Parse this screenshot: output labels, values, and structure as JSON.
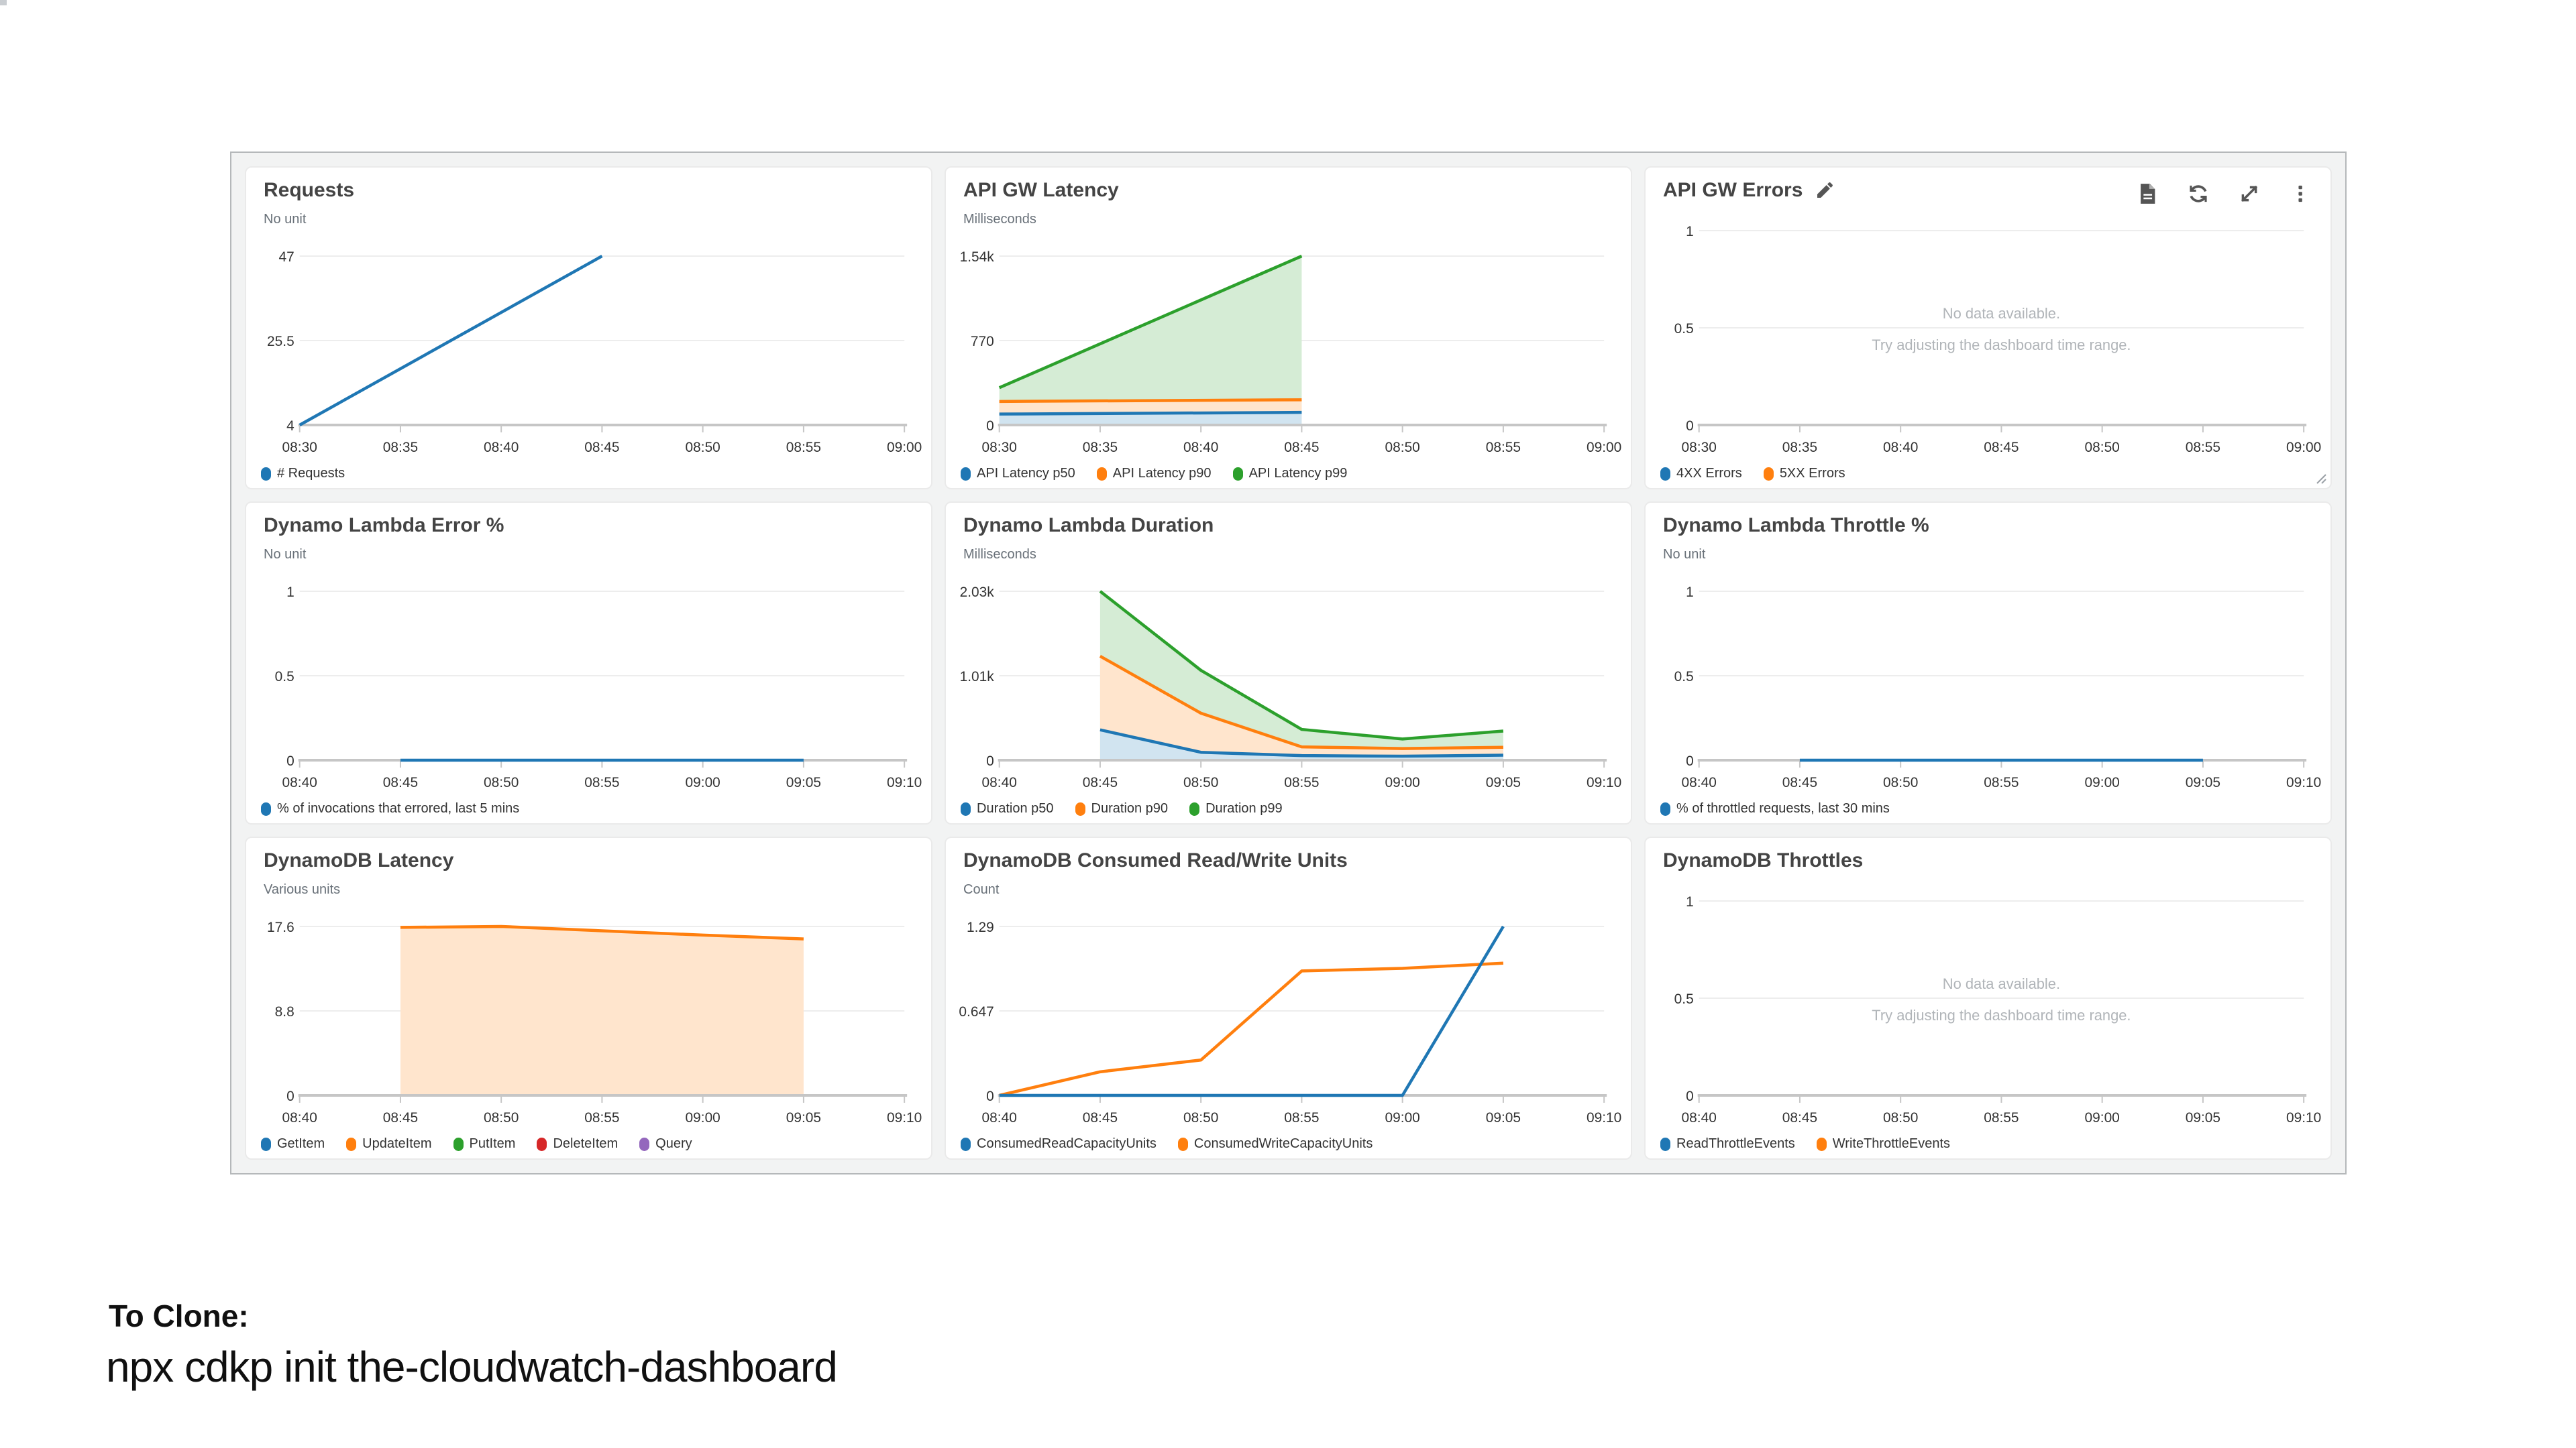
{
  "page": {
    "clone_heading": "To Clone:",
    "clone_command": "npx cdkp init the-cloudwatch-dashboard"
  },
  "messages": {
    "no_data_line1": "No data available.",
    "no_data_line2": "Try adjusting the dashboard time range."
  },
  "toolbar": {
    "icons": [
      "logs-icon",
      "refresh-icon",
      "expand-icon",
      "menu-icon"
    ],
    "edit_icon": "pencil-icon",
    "resize_icon": "resize-handle-icon"
  },
  "colors": {
    "blue": "#1f77b4",
    "orange": "#ff7f0e",
    "green": "#2ca02c",
    "red": "#d62728",
    "purple": "#9467bd",
    "blue_fill": "#d1e4f0",
    "orange_fill": "#ffe5cd",
    "green_fill": "#d5ecd5",
    "title_text": "#444444",
    "axis_text": "#333333",
    "unit_text": "#687078",
    "gridline": "#ededed",
    "axis_line": "#c6c6c6",
    "no_data_text": "#b0b4b8",
    "dashboard_bg": "#f2f3f3",
    "dashboard_border": "#b5b8ba"
  },
  "chart_data": [
    {
      "type": "line",
      "title": "Requests",
      "unit": "No unit",
      "x_ticks": [
        "08:30",
        "08:35",
        "08:40",
        "08:45",
        "08:50",
        "08:55",
        "09:00"
      ],
      "x_domain": [
        0,
        30
      ],
      "y_ticks": [
        "47",
        "25.5",
        "4"
      ],
      "y_domain": [
        4,
        47
      ],
      "no_data": false,
      "show_edit": false,
      "show_toolbar": false,
      "show_resize": false,
      "series": [
        {
          "name": "# Requests",
          "color": "#1f77b4",
          "fill": false,
          "points": [
            [
              0,
              4
            ],
            [
              15,
              47
            ]
          ]
        }
      ]
    },
    {
      "type": "area",
      "title": "API GW Latency",
      "unit": "Milliseconds",
      "x_ticks": [
        "08:30",
        "08:35",
        "08:40",
        "08:45",
        "08:50",
        "08:55",
        "09:00"
      ],
      "x_domain": [
        0,
        30
      ],
      "y_ticks": [
        "1.54k",
        "770",
        "0"
      ],
      "y_domain": [
        0,
        1540
      ],
      "no_data": false,
      "show_edit": false,
      "show_toolbar": false,
      "show_resize": false,
      "series": [
        {
          "name": "API Latency p50",
          "color": "#1f77b4",
          "fill": "#d1e4f0",
          "points": [
            [
              0,
              100
            ],
            [
              15,
              115
            ]
          ]
        },
        {
          "name": "API Latency p90",
          "color": "#ff7f0e",
          "fill": "#ffe5cd",
          "points": [
            [
              0,
              215
            ],
            [
              15,
              230
            ]
          ]
        },
        {
          "name": "API Latency p99",
          "color": "#2ca02c",
          "fill": "#d5ecd5",
          "points": [
            [
              0,
              340
            ],
            [
              15,
              1540
            ]
          ]
        }
      ]
    },
    {
      "type": "line",
      "title": "API GW Errors",
      "unit": "",
      "x_ticks": [
        "08:30",
        "08:35",
        "08:40",
        "08:45",
        "08:50",
        "08:55",
        "09:00"
      ],
      "x_domain": [
        0,
        30
      ],
      "y_ticks": [
        "1",
        "0.5",
        "0"
      ],
      "y_domain": [
        0,
        1
      ],
      "no_data": true,
      "show_edit": true,
      "show_toolbar": true,
      "show_resize": true,
      "series": [
        {
          "name": "4XX Errors",
          "color": "#1f77b4",
          "fill": false,
          "points": []
        },
        {
          "name": "5XX Errors",
          "color": "#ff7f0e",
          "fill": false,
          "points": []
        }
      ]
    },
    {
      "type": "line",
      "title": "Dynamo Lambda Error %",
      "unit": "No unit",
      "x_ticks": [
        "08:40",
        "08:45",
        "08:50",
        "08:55",
        "09:00",
        "09:05",
        "09:10"
      ],
      "x_domain": [
        0,
        30
      ],
      "y_ticks": [
        "1",
        "0.5",
        "0"
      ],
      "y_domain": [
        0,
        1
      ],
      "no_data": false,
      "show_edit": false,
      "show_toolbar": false,
      "show_resize": false,
      "series": [
        {
          "name": "% of invocations that errored, last 5 mins",
          "color": "#1f77b4",
          "fill": false,
          "points": [
            [
              5,
              0
            ],
            [
              25,
              0
            ]
          ]
        }
      ]
    },
    {
      "type": "area",
      "title": "Dynamo Lambda Duration",
      "unit": "Milliseconds",
      "x_ticks": [
        "08:40",
        "08:45",
        "08:50",
        "08:55",
        "09:00",
        "09:05",
        "09:10"
      ],
      "x_domain": [
        0,
        30
      ],
      "y_ticks": [
        "2.03k",
        "1.01k",
        "0"
      ],
      "y_domain": [
        0,
        2030
      ],
      "no_data": false,
      "show_edit": false,
      "show_toolbar": false,
      "show_resize": false,
      "series": [
        {
          "name": "Duration p50",
          "color": "#1f77b4",
          "fill": "#d1e4f0",
          "points": [
            [
              5,
              365
            ],
            [
              10,
              95
            ],
            [
              15,
              55
            ],
            [
              20,
              48
            ],
            [
              25,
              60
            ]
          ]
        },
        {
          "name": "Duration p90",
          "color": "#ff7f0e",
          "fill": "#ffe5cd",
          "points": [
            [
              5,
              1250
            ],
            [
              10,
              565
            ],
            [
              15,
              160
            ],
            [
              20,
              140
            ],
            [
              25,
              155
            ]
          ]
        },
        {
          "name": "Duration p99",
          "color": "#2ca02c",
          "fill": "#d5ecd5",
          "points": [
            [
              5,
              2030
            ],
            [
              10,
              1080
            ],
            [
              15,
              370
            ],
            [
              20,
              255
            ],
            [
              25,
              350
            ]
          ]
        }
      ]
    },
    {
      "type": "line",
      "title": "Dynamo Lambda Throttle %",
      "unit": "No unit",
      "x_ticks": [
        "08:40",
        "08:45",
        "08:50",
        "08:55",
        "09:00",
        "09:05",
        "09:10"
      ],
      "x_domain": [
        0,
        30
      ],
      "y_ticks": [
        "1",
        "0.5",
        "0"
      ],
      "y_domain": [
        0,
        1
      ],
      "no_data": false,
      "show_edit": false,
      "show_toolbar": false,
      "show_resize": false,
      "series": [
        {
          "name": "% of throttled requests, last 30 mins",
          "color": "#1f77b4",
          "fill": false,
          "points": [
            [
              5,
              0
            ],
            [
              25,
              0
            ]
          ]
        }
      ]
    },
    {
      "type": "area",
      "title": "DynamoDB Latency",
      "unit": "Various units",
      "x_ticks": [
        "08:40",
        "08:45",
        "08:50",
        "08:55",
        "09:00",
        "09:05",
        "09:10"
      ],
      "x_domain": [
        0,
        30
      ],
      "y_ticks": [
        "17.6",
        "8.8",
        "0"
      ],
      "y_domain": [
        0,
        17.6
      ],
      "no_data": false,
      "show_edit": false,
      "show_toolbar": false,
      "show_resize": false,
      "series": [
        {
          "name": "GetItem",
          "color": "#1f77b4",
          "fill": false,
          "points": []
        },
        {
          "name": "UpdateItem",
          "color": "#ff7f0e",
          "fill": "#ffe5cd",
          "points": [
            [
              5,
              17.5
            ],
            [
              10,
              17.6
            ],
            [
              15,
              17.15
            ],
            [
              20,
              16.7
            ],
            [
              25,
              16.3
            ]
          ]
        },
        {
          "name": "PutItem",
          "color": "#2ca02c",
          "fill": false,
          "points": []
        },
        {
          "name": "DeleteItem",
          "color": "#d62728",
          "fill": false,
          "points": []
        },
        {
          "name": "Query",
          "color": "#9467bd",
          "fill": false,
          "points": []
        }
      ]
    },
    {
      "type": "line",
      "title": "DynamoDB Consumed Read/Write Units",
      "unit": "Count",
      "x_ticks": [
        "08:40",
        "08:45",
        "08:50",
        "08:55",
        "09:00",
        "09:05",
        "09:10"
      ],
      "x_domain": [
        0,
        30
      ],
      "y_ticks": [
        "1.29",
        "0.647",
        "0"
      ],
      "y_domain": [
        0,
        1.29
      ],
      "no_data": false,
      "show_edit": false,
      "show_toolbar": false,
      "show_resize": false,
      "series": [
        {
          "name": "ConsumedReadCapacityUnits",
          "color": "#1f77b4",
          "fill": false,
          "points": [
            [
              0,
              0
            ],
            [
              5,
              0
            ],
            [
              10,
              0
            ],
            [
              15,
              0
            ],
            [
              20,
              0
            ],
            [
              25,
              1.29
            ]
          ]
        },
        {
          "name": "ConsumedWriteCapacityUnits",
          "color": "#ff7f0e",
          "fill": false,
          "points": [
            [
              0,
              0
            ],
            [
              5,
              0.18
            ],
            [
              10,
              0.27
            ],
            [
              15,
              0.95
            ],
            [
              20,
              0.97
            ],
            [
              25,
              1.01
            ]
          ]
        }
      ]
    },
    {
      "type": "line",
      "title": "DynamoDB Throttles",
      "unit": "",
      "x_ticks": [
        "08:40",
        "08:45",
        "08:50",
        "08:55",
        "09:00",
        "09:05",
        "09:10"
      ],
      "x_domain": [
        0,
        30
      ],
      "y_ticks": [
        "1",
        "0.5",
        "0"
      ],
      "y_domain": [
        0,
        1
      ],
      "no_data": true,
      "show_edit": false,
      "show_toolbar": false,
      "show_resize": false,
      "series": [
        {
          "name": "ReadThrottleEvents",
          "color": "#1f77b4",
          "fill": false,
          "points": []
        },
        {
          "name": "WriteThrottleEvents",
          "color": "#ff7f0e",
          "fill": false,
          "points": []
        }
      ]
    }
  ]
}
